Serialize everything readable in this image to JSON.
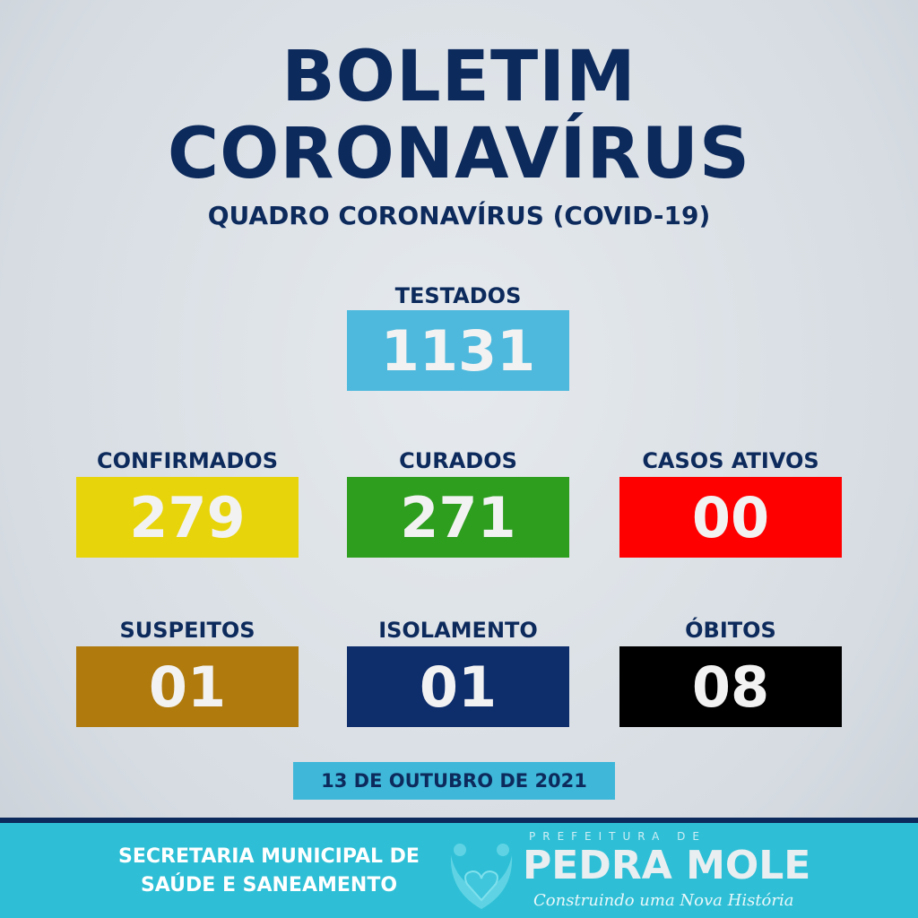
{
  "title": {
    "line1": "BOLETIM",
    "line2": "CORONAVÍRUS",
    "subtitle": "QUADRO CORONAVÍRUS (COVID-19)"
  },
  "stats": [
    {
      "label": "TESTADOS",
      "value": "1131",
      "color": "#4fb9dd"
    },
    {
      "label": "CONFIRMADOS",
      "value": "279",
      "color": "#e8d40a"
    },
    {
      "label": "CURADOS",
      "value": "271",
      "color": "#2e9e1f"
    },
    {
      "label": "CASOS ATIVOS",
      "value": "00",
      "color": "#ff0000"
    },
    {
      "label": "SUSPEITOS",
      "value": "01",
      "color": "#b07a0c"
    },
    {
      "label": "ISOLAMENTO",
      "value": "01",
      "color": "#0e2d6b"
    },
    {
      "label": "ÓBITOS",
      "value": "08",
      "color": "#000000"
    }
  ],
  "date": "13 DE OUTUBRO DE 2021",
  "footer": {
    "secretaria_line1": "SECRETARIA MUNICIPAL DE",
    "secretaria_line2": "SAÚDE E SANEAMENTO",
    "logo_top": "PREFEITURA DE",
    "logo_name": "PEDRA MOLE",
    "slogan": "Construindo uma Nova História"
  }
}
